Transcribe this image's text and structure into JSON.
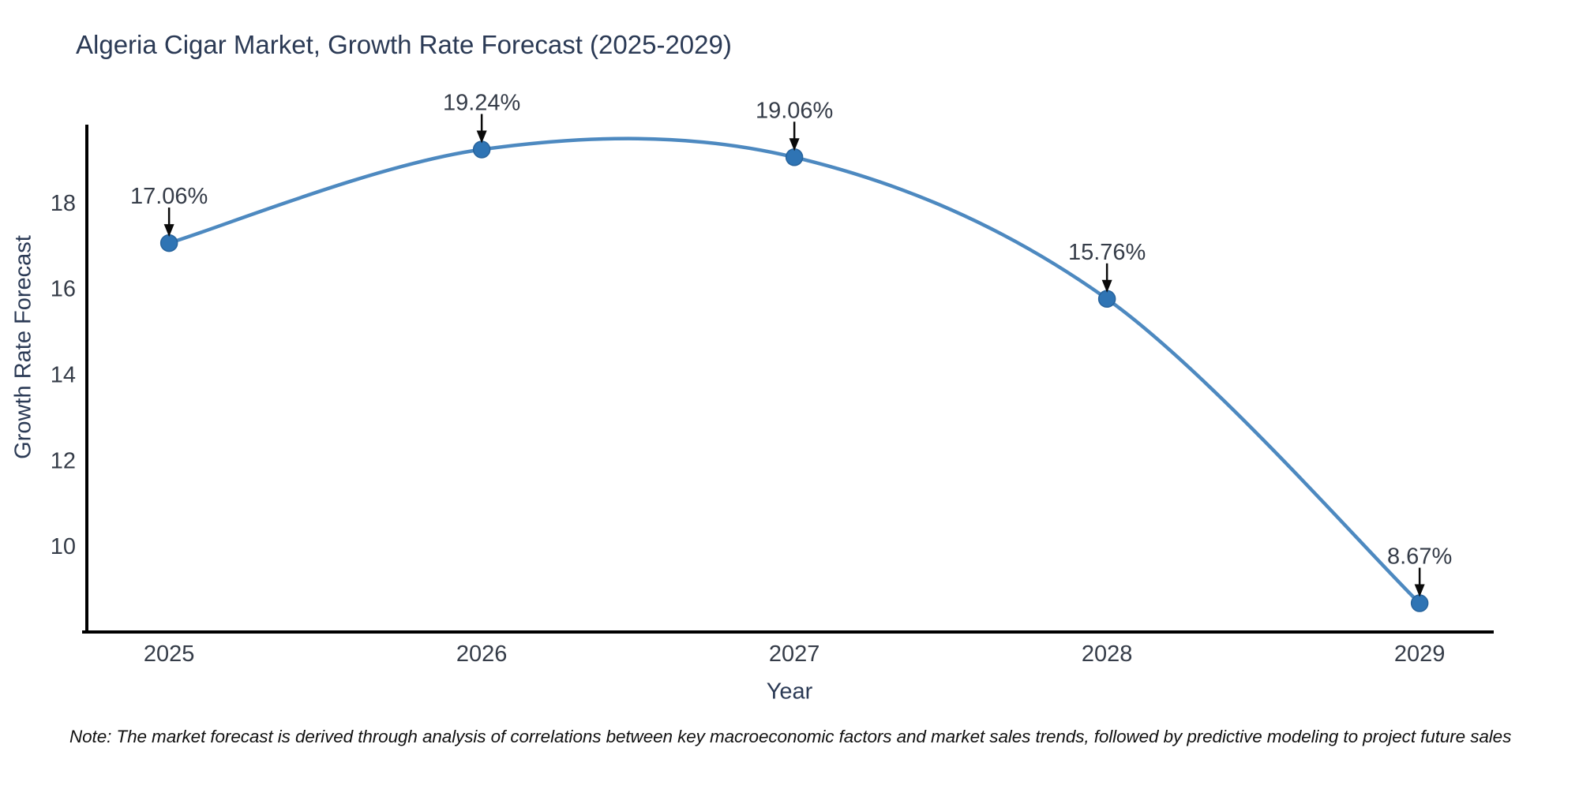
{
  "chart_data": {
    "type": "line",
    "title": "Algeria Cigar Market, Growth Rate Forecast (2025-2029)",
    "xlabel": "Year",
    "ylabel": "Growth Rate Forecast",
    "x": [
      2025,
      2026,
      2027,
      2028,
      2029
    ],
    "values": [
      17.06,
      19.24,
      19.06,
      15.76,
      8.67
    ],
    "point_labels": [
      "17.06%",
      "19.24%",
      "19.06%",
      "15.76%",
      "8.67%"
    ],
    "x_tick_labels": [
      "2025",
      "2026",
      "2027",
      "2028",
      "2029"
    ],
    "y_ticks": [
      10,
      12,
      14,
      16,
      18
    ],
    "xlim": [
      2024.737,
      2029.232
    ],
    "ylim": [
      8.0,
      19.8
    ],
    "grid": false,
    "legend": false,
    "smoothing": "spline",
    "annotation_style": "value-label-with-down-arrow",
    "colors": {
      "line": "#4d89c0",
      "marker_fill": "#2f74b4",
      "marker_edge": "#27639c",
      "axis": "#000000",
      "arrow": "#0a0a0a",
      "tick_text": "#353c48",
      "label_text": "#2b3a55",
      "note_text": "#111111"
    },
    "note": "Note: The market forecast is derived through analysis of correlations between key macroeconomic factors and market sales trends, followed by predictive modeling to project future sales"
  }
}
